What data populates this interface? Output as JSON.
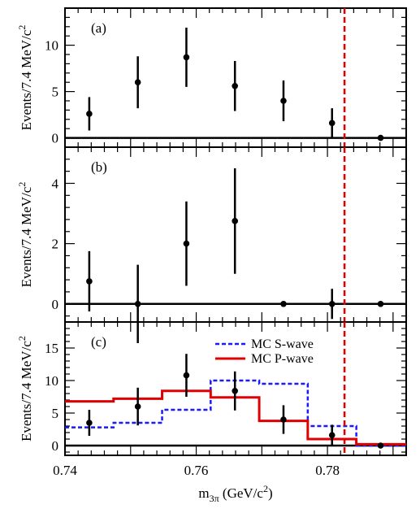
{
  "chart_data": [
    {
      "type": "scatter",
      "panel_label": "(a)",
      "ylabel": "Events/7.4 MeV/c",
      "ylabel_sup": "2",
      "ylim": [
        -1,
        14
      ],
      "yticks": [
        0,
        5,
        10
      ],
      "xlim": [
        0.74,
        0.792
      ],
      "series": [
        {
          "points": [
            {
              "x": 0.7437,
              "y": 2.6,
              "err": [
                1.8,
                1.8
              ]
            },
            {
              "x": 0.7511,
              "y": 6.0,
              "err": [
                2.8,
                2.8
              ]
            },
            {
              "x": 0.7585,
              "y": 8.7,
              "err": [
                3.2,
                3.2
              ]
            },
            {
              "x": 0.7659,
              "y": 5.6,
              "err": [
                2.7,
                2.7
              ]
            },
            {
              "x": 0.7733,
              "y": 4.0,
              "err": [
                2.2,
                2.2
              ]
            },
            {
              "x": 0.7807,
              "y": 1.6,
              "err": [
                1.6,
                1.6
              ]
            },
            {
              "x": 0.7881,
              "y": 0.0,
              "err": [
                0,
                0
              ]
            }
          ]
        }
      ],
      "vline_x": 0.7826
    },
    {
      "type": "scatter",
      "panel_label": "(b)",
      "ylabel": "Events/7.4 MeV/c",
      "ylabel_sup": "2",
      "ylim": [
        -0.6,
        5.2
      ],
      "yticks": [
        0,
        2,
        4
      ],
      "xlim": [
        0.74,
        0.792
      ],
      "series": [
        {
          "points": [
            {
              "x": 0.7437,
              "y": 0.75,
              "err": [
                1.0,
                1.0
              ]
            },
            {
              "x": 0.7511,
              "y": 0.0,
              "err": [
                1.3,
                1.3
              ]
            },
            {
              "x": 0.7585,
              "y": 2.0,
              "err": [
                1.4,
                1.4
              ]
            },
            {
              "x": 0.7659,
              "y": 2.75,
              "err": [
                1.75,
                1.75
              ]
            },
            {
              "x": 0.7733,
              "y": 0.0,
              "err": [
                0,
                0
              ]
            },
            {
              "x": 0.7807,
              "y": 0.0,
              "err": [
                0.5,
                0.5
              ]
            },
            {
              "x": 0.7881,
              "y": 0.0,
              "err": [
                0,
                0
              ]
            }
          ]
        }
      ],
      "vline_x": 0.7826
    },
    {
      "type": "scatter",
      "panel_label": "(c)",
      "ylabel": "Events/7.4 MeV/c",
      "ylabel_sup": "2",
      "ylim": [
        -1.5,
        19
      ],
      "yticks": [
        0,
        5,
        10,
        15
      ],
      "xlim": [
        0.74,
        0.792
      ],
      "xticks": [
        "0.74",
        "0.76",
        "0.78"
      ],
      "xlabel": "m",
      "xlabel_sub": "3π",
      "xlabel_unit": " (GeV/c",
      "xlabel_unit_sup": "2",
      "xlabel_unit_end": ")",
      "series": [
        {
          "points": [
            {
              "x": 0.7437,
              "y": 3.5,
              "err": [
                2.0,
                2.0
              ]
            },
            {
              "x": 0.7511,
              "y": 6.0,
              "err": [
                2.9,
                2.9
              ]
            },
            {
              "x": 0.7585,
              "y": 10.8,
              "err": [
                3.3,
                3.3
              ]
            },
            {
              "x": 0.7659,
              "y": 8.4,
              "err": [
                3.0,
                3.0
              ]
            },
            {
              "x": 0.7733,
              "y": 4.0,
              "err": [
                2.2,
                2.2
              ]
            },
            {
              "x": 0.7807,
              "y": 1.6,
              "err": [
                1.6,
                1.6
              ]
            },
            {
              "x": 0.7881,
              "y": 0.0,
              "err": [
                0,
                0
              ]
            }
          ]
        }
      ],
      "histograms": [
        {
          "name": "MC S-wave",
          "color": "#1a1aff",
          "dashed": true,
          "edges": [
            0.74,
            0.7474,
            0.7548,
            0.7622,
            0.7696,
            0.777,
            0.7844,
            0.792
          ],
          "values": [
            2.8,
            3.5,
            5.5,
            10.0,
            9.5,
            3.0,
            0.0
          ]
        },
        {
          "name": "MC P-wave",
          "color": "#e00000",
          "dashed": false,
          "edges": [
            0.74,
            0.7474,
            0.7548,
            0.7622,
            0.7696,
            0.777,
            0.7844,
            0.792
          ],
          "values": [
            6.8,
            7.2,
            8.4,
            7.4,
            3.8,
            1.0,
            0.2
          ]
        }
      ],
      "vline_x": 0.7826
    }
  ],
  "colors": {
    "vline": "#e00000",
    "points": "#000000"
  }
}
